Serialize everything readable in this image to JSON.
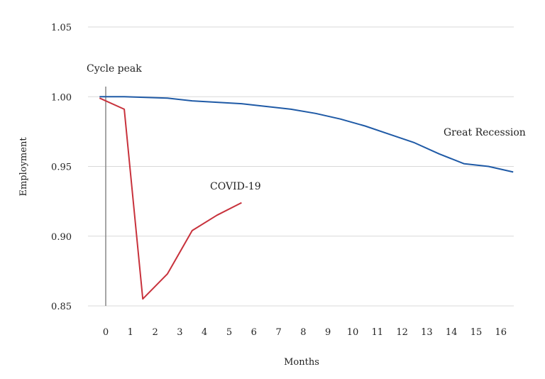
{
  "chart_data": {
    "type": "line",
    "xlabel": "Months",
    "ylabel": "Employment",
    "ylim": [
      0.85,
      1.05
    ],
    "xlim": [
      0,
      16
    ],
    "x_ticks": [
      "0",
      "1",
      "2",
      "3",
      "4",
      "5",
      "6",
      "7",
      "8",
      "9",
      "10",
      "11",
      "12",
      "13",
      "14",
      "15",
      "16"
    ],
    "y_ticks": [
      "0.85",
      "0.90",
      "0.95",
      "1.00",
      "1.05"
    ],
    "y_tick_values": [
      0.85,
      0.9,
      0.95,
      1.0,
      1.05
    ],
    "grid": true,
    "annotations": {
      "cycle_peak": "Cycle peak",
      "great_recession": "Great Recession",
      "covid": "COVID-19"
    },
    "series": [
      {
        "name": "Great Recession",
        "color": "#1f5aa6",
        "x": [
          -0.25,
          0.75,
          2.5,
          3.5,
          4.5,
          5.5,
          6.5,
          7.5,
          8.5,
          9.5,
          10.5,
          11.5,
          12.5,
          13.5,
          14.5,
          15.5,
          16.5
        ],
        "y": [
          1.0,
          1.0,
          0.999,
          0.997,
          0.996,
          0.995,
          0.993,
          0.991,
          0.988,
          0.984,
          0.979,
          0.973,
          0.967,
          0.959,
          0.952,
          0.95,
          0.946
        ]
      },
      {
        "name": "COVID-19",
        "color": "#c8323c",
        "x": [
          -0.25,
          0.75,
          1.5,
          2.5,
          3.5,
          4.5,
          5.5
        ],
        "y": [
          0.999,
          0.991,
          0.855,
          0.873,
          0.904,
          0.915,
          0.924
        ]
      }
    ]
  }
}
